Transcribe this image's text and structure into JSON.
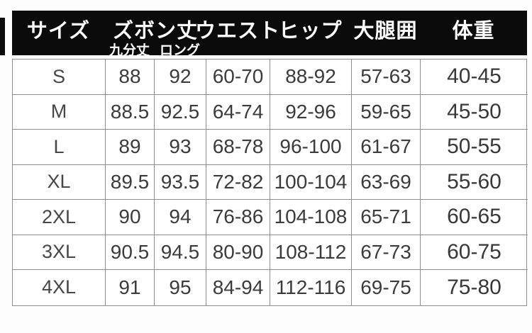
{
  "chart_data": {
    "type": "table",
    "header": {
      "size": "サイズ",
      "pants_length": "ズボン丈",
      "nine_tenths": "九分丈",
      "long": "ロング",
      "waist": "ウエスト",
      "hip": "ヒップ",
      "thigh": "大腿囲",
      "weight": "体重"
    },
    "rows": [
      [
        "S",
        "88",
        "92",
        "60-70",
        "88-92",
        "57-63",
        "40-45"
      ],
      [
        "M",
        "88.5",
        "92.5",
        "64-74",
        "92-96",
        "59-65",
        "45-50"
      ],
      [
        "L",
        "89",
        "93",
        "68-78",
        "96-100",
        "61-67",
        "50-55"
      ],
      [
        "XL",
        "89.5",
        "93.5",
        "72-82",
        "100-104",
        "63-69",
        "55-60"
      ],
      [
        "2XL",
        "90",
        "94",
        "76-86",
        "104-108",
        "65-71",
        "60-65"
      ],
      [
        "3XL",
        "90.5",
        "94.5",
        "80-90",
        "108-112",
        "67-73",
        "60-75"
      ],
      [
        "4XL",
        "91",
        "95",
        "84-94",
        "112-116",
        "69-75",
        "75-80"
      ]
    ]
  },
  "colors": {
    "header_bg": "#0b0b0b",
    "header_text": "#ffffff",
    "body_bg": "#ffffff",
    "body_text": "#3b3b3b",
    "border": "#8e8e8e",
    "page_bg": "#fdfdfd"
  }
}
